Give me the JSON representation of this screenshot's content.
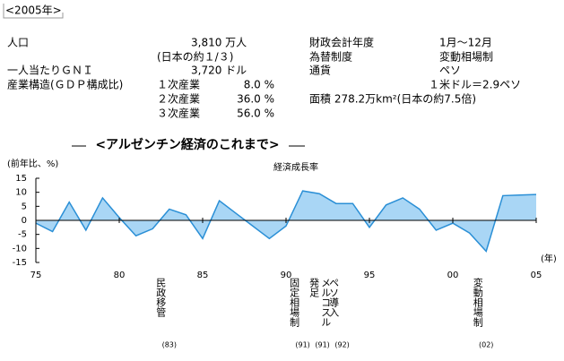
{
  "header": "<2005年>",
  "info": {
    "population_label": "人口",
    "population": "3,810 万人",
    "population_note": "(日本の約１/３)",
    "gni_label": "一人当たりＧＮＩ",
    "gni": "3,720 ドル",
    "industry_label": "産業構造(ＧＤＰ構成比)",
    "industries": [
      {
        "name": "１次産業",
        "share": "8.0 %"
      },
      {
        "name": "２次産業",
        "share": "36.0 %"
      },
      {
        "name": "３次産業",
        "share": "56.0 %"
      }
    ],
    "fiscal_label": "財政会計年度",
    "fiscal": "1月～12月",
    "fx_label": "為替制度",
    "fx": "変動相場制",
    "currency_label": "通貨",
    "currency": "ペソ",
    "rate": "１米ドル＝2.9ペソ",
    "area": "面積 278.2万km²(日本の約7.5倍)"
  },
  "chart_data": {
    "type": "area",
    "section_title": "<アルゼンチン経済のこれまで>",
    "title": "経済成長率",
    "y_label": "(前年比、%)",
    "x_label": "(年)",
    "color": "#a9d6f5",
    "line_color": "#2a8fd6",
    "x": [
      1975,
      1976,
      1977,
      1978,
      1979,
      1980,
      1981,
      1982,
      1983,
      1984,
      1985,
      1986,
      1987,
      1988,
      1989,
      1990,
      1991,
      1992,
      1993,
      1994,
      1995,
      1996,
      1997,
      1998,
      1999,
      2000,
      2001,
      2002,
      2003,
      2004,
      2005
    ],
    "values": [
      -1,
      -4,
      6.5,
      -3.5,
      8,
      1,
      -5.5,
      -3,
      4,
      2,
      -6.5,
      7,
      2.5,
      -2,
      -6.5,
      -2,
      10.5,
      9.5,
      6,
      6,
      -2.5,
      5.5,
      8,
      4,
      -3.5,
      -1,
      -4.5,
      -11,
      8.8,
      9,
      9.2
    ],
    "xlim": [
      1975,
      2005
    ],
    "xticks": [
      {
        "value": 1975,
        "label": "75"
      },
      {
        "value": 1980,
        "label": "80"
      },
      {
        "value": 1985,
        "label": "85"
      },
      {
        "value": 1990,
        "label": "90"
      },
      {
        "value": 1995,
        "label": "95"
      },
      {
        "value": 2000,
        "label": "00"
      },
      {
        "value": 2005,
        "label": "05"
      }
    ],
    "ylim": [
      -15,
      15
    ],
    "yticks": [
      15,
      10,
      5,
      0,
      -5,
      -10,
      -15
    ],
    "annotations": [
      {
        "year": 1983,
        "text": "民政移管",
        "label": "(83)"
      },
      {
        "year": 1991,
        "text": "固定相場制",
        "label": "(91)"
      },
      {
        "year": 1991,
        "text": "メルコスル発足",
        "label": "(91)"
      },
      {
        "year": 1992,
        "text": "ペソ導入",
        "label": "(92)"
      },
      {
        "year": 2002,
        "text": "変動相場制",
        "label": "(02)"
      }
    ]
  }
}
